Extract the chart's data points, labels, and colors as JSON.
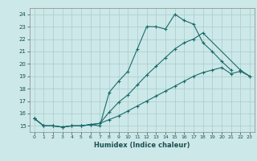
{
  "title": "",
  "xlabel": "Humidex (Indice chaleur)",
  "ylabel": "",
  "bg_color": "#cde8e8",
  "grid_color": "#a8cccc",
  "line_color": "#1a6b6b",
  "xlim": [
    -0.5,
    23.5
  ],
  "ylim": [
    14.5,
    24.5
  ],
  "xticks": [
    0,
    1,
    2,
    3,
    4,
    5,
    6,
    7,
    8,
    9,
    10,
    11,
    12,
    13,
    14,
    15,
    16,
    17,
    18,
    19,
    20,
    21,
    22,
    23
  ],
  "yticks": [
    15,
    16,
    17,
    18,
    19,
    20,
    21,
    22,
    23,
    24
  ],
  "line1_x": [
    0,
    1,
    2,
    3,
    4,
    5,
    6,
    7,
    8,
    9,
    10,
    11,
    12,
    13,
    14,
    15,
    16,
    17,
    18,
    19,
    20,
    21
  ],
  "line1_y": [
    15.6,
    15.0,
    15.0,
    14.9,
    15.0,
    15.0,
    15.1,
    15.0,
    17.7,
    18.6,
    19.4,
    21.2,
    23.0,
    23.0,
    22.8,
    24.0,
    23.5,
    23.2,
    21.7,
    21.0,
    20.2,
    19.5
  ],
  "line2_x": [
    0,
    1,
    2,
    3,
    4,
    5,
    6,
    7,
    8,
    9,
    10,
    11,
    12,
    13,
    14,
    15,
    16,
    17,
    18,
    22,
    23
  ],
  "line2_y": [
    15.6,
    15.0,
    15.0,
    14.9,
    15.0,
    15.0,
    15.1,
    15.2,
    16.1,
    16.9,
    17.5,
    18.3,
    19.1,
    19.8,
    20.5,
    21.2,
    21.7,
    22.0,
    22.5,
    19.5,
    19.0
  ],
  "line3_x": [
    0,
    1,
    2,
    3,
    4,
    5,
    6,
    7,
    8,
    9,
    10,
    11,
    12,
    13,
    14,
    15,
    16,
    17,
    18,
    19,
    20,
    21,
    22,
    23
  ],
  "line3_y": [
    15.6,
    15.0,
    15.0,
    14.9,
    15.0,
    15.0,
    15.1,
    15.2,
    15.5,
    15.8,
    16.2,
    16.6,
    17.0,
    17.4,
    17.8,
    18.2,
    18.6,
    19.0,
    19.3,
    19.5,
    19.7,
    19.2,
    19.4,
    19.0
  ]
}
